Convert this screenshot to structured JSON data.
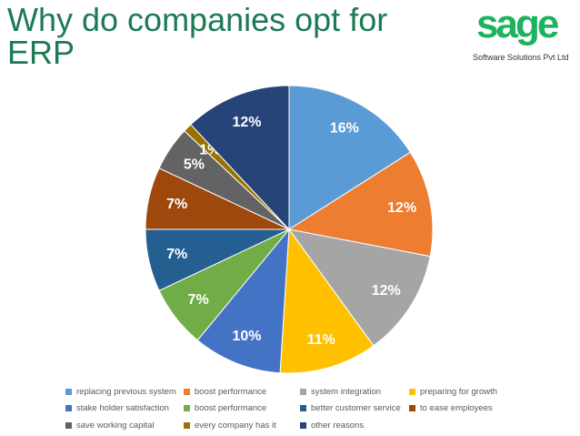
{
  "slide": {
    "title": "Why do companies opt for ERP"
  },
  "logo": {
    "word": "sage",
    "tagline": "Software Solutions Pvt Ltd"
  },
  "chart_data": {
    "type": "pie",
    "title": "",
    "start_angle_deg": 0,
    "direction": "clockwise",
    "legend_placement": "bottom",
    "labels": [
      "16%",
      "12%",
      "12%",
      "11%",
      "10%",
      "7%",
      "7%",
      "7%",
      "5%",
      "1%",
      "12%"
    ],
    "slices": [
      {
        "name": "replacing previous system",
        "value": 16,
        "color": "#5b9bd5"
      },
      {
        "name": "boost performance",
        "value": 12,
        "color": "#ed7d31"
      },
      {
        "name": "system integration",
        "value": 12,
        "color": "#a5a5a5"
      },
      {
        "name": "preparing for growth",
        "value": 11,
        "color": "#ffc000"
      },
      {
        "name": "stake holder satisfaction",
        "value": 10,
        "color": "#4472c4"
      },
      {
        "name": "boost performance",
        "value": 7,
        "color": "#70ad47"
      },
      {
        "name": "better customer service",
        "value": 7,
        "color": "#255e91"
      },
      {
        "name": "to ease employees",
        "value": 7,
        "color": "#9e480e"
      },
      {
        "name": "save working capital",
        "value": 5,
        "color": "#636363"
      },
      {
        "name": "every company has it",
        "value": 1,
        "color": "#997300"
      },
      {
        "name": "other reasons",
        "value": 12,
        "color": "#264478"
      }
    ]
  }
}
